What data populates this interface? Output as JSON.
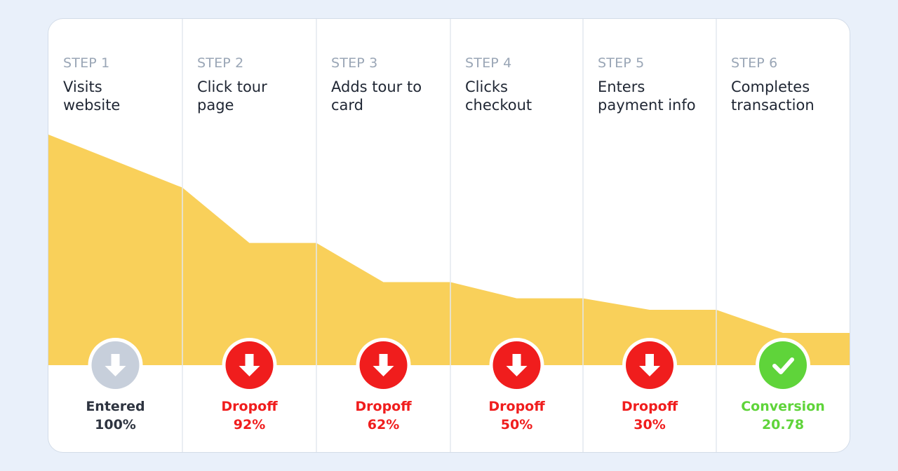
{
  "colors": {
    "background": "#e9f0fa",
    "card": "#ffffff",
    "funnel_fill": "#f9d05a",
    "divider": "#e3e8ef",
    "step_number": "#9aa6b6",
    "step_title": "#1f2633",
    "entered": "#c7cfdb",
    "dropoff": "#f01d1d",
    "conversion": "#5fd43a",
    "entered_text": "#2e3440"
  },
  "chart_data": {
    "type": "area",
    "x": [
      "STEP 1",
      "STEP 2",
      "STEP 3",
      "STEP 4",
      "STEP 5",
      "STEP 6"
    ],
    "values_start": [
      100,
      77,
      53,
      36,
      29,
      24
    ],
    "values_end": [
      77,
      53,
      36,
      29,
      24,
      14
    ],
    "steps": [
      {
        "number": "STEP 1",
        "title": "Visits\nwebsite",
        "status_label": "Entered",
        "status_value": "100%",
        "status": "entered",
        "icon": "arrow-down-icon"
      },
      {
        "number": "STEP 2",
        "title": "Click tour\npage",
        "status_label": "Dropoff",
        "status_value": "92%",
        "status": "dropoff",
        "icon": "arrow-down-icon"
      },
      {
        "number": "STEP 3",
        "title": "Adds tour to\ncard",
        "status_label": "Dropoff",
        "status_value": "62%",
        "status": "dropoff",
        "icon": "arrow-down-icon"
      },
      {
        "number": "STEP 4",
        "title": "Clicks\ncheckout",
        "status_label": "Dropoff",
        "status_value": "50%",
        "status": "dropoff",
        "icon": "arrow-down-icon"
      },
      {
        "number": "STEP 5",
        "title": "Enters\npayment info",
        "status_label": "Dropoff",
        "status_value": "30%",
        "status": "dropoff",
        "icon": "arrow-down-icon"
      },
      {
        "number": "STEP 6",
        "title": "Completes\ntransaction",
        "status_label": "Conversion",
        "status_value": "20.78",
        "status": "conversion",
        "icon": "check-icon"
      }
    ]
  }
}
